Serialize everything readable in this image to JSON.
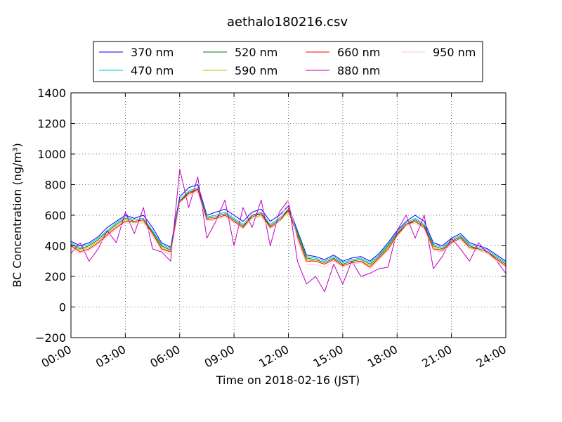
{
  "chart_data": {
    "type": "line",
    "title": "aethalo180216.csv",
    "xlabel": "Time on 2018-02-16 (JST)",
    "ylabel": "BC Concentration (ng/m³)",
    "ylim": [
      -200,
      1400
    ],
    "xlim": [
      "00:00",
      "24:00"
    ],
    "grid": true,
    "legend_position": "top, above plot",
    "yticks": [
      "−200",
      "0",
      "200",
      "400",
      "600",
      "800",
      "1000",
      "1200",
      "1400"
    ],
    "xticks": [
      "00:00",
      "03:00",
      "06:00",
      "09:00",
      "12:00",
      "15:00",
      "18:00",
      "21:00",
      "24:00"
    ],
    "x_hours": [
      0,
      0.5,
      1,
      1.5,
      2,
      2.5,
      3,
      3.5,
      4,
      4.5,
      5,
      5.5,
      6,
      6.5,
      7,
      7.5,
      8,
      8.5,
      9,
      9.5,
      10,
      10.5,
      11,
      11.5,
      12,
      12.5,
      13,
      13.5,
      14,
      14.5,
      15,
      15.5,
      16,
      16.5,
      17,
      17.5,
      18,
      18.5,
      19,
      19.5,
      20,
      20.5,
      21,
      21.5,
      22,
      22.5,
      23,
      23.5,
      24
    ],
    "series": [
      {
        "name": "370 nm",
        "color": "#0000ff",
        "values": [
          430,
          400,
          420,
          460,
          520,
          560,
          600,
          580,
          600,
          520,
          420,
          390,
          720,
          780,
          800,
          600,
          620,
          640,
          600,
          560,
          620,
          640,
          560,
          600,
          660,
          500,
          340,
          330,
          310,
          340,
          300,
          320,
          330,
          300,
          350,
          420,
          500,
          560,
          600,
          560,
          420,
          400,
          450,
          480,
          420,
          400,
          380,
          340,
          300
        ]
      },
      {
        "name": "470 nm",
        "color": "#00bfbf",
        "values": [
          420,
          390,
          410,
          450,
          500,
          550,
          590,
          570,
          580,
          500,
          410,
          380,
          700,
          760,
          780,
          590,
          600,
          620,
          580,
          540,
          600,
          620,
          540,
          580,
          640,
          490,
          330,
          320,
          300,
          330,
          290,
          310,
          320,
          290,
          340,
          410,
          490,
          550,
          580,
          540,
          410,
          390,
          440,
          470,
          410,
          390,
          370,
          330,
          290
        ]
      },
      {
        "name": "520 nm",
        "color": "#008000",
        "values": [
          410,
          380,
          400,
          440,
          490,
          540,
          580,
          560,
          570,
          490,
          400,
          370,
          690,
          750,
          770,
          580,
          590,
          610,
          570,
          530,
          590,
          610,
          530,
          570,
          630,
          480,
          320,
          310,
          290,
          320,
          280,
          300,
          310,
          280,
          330,
          400,
          480,
          540,
          570,
          530,
          400,
          380,
          430,
          460,
          400,
          380,
          360,
          320,
          280
        ]
      },
      {
        "name": "590 nm",
        "color": "#bfbf00",
        "values": [
          400,
          370,
          390,
          430,
          480,
          530,
          570,
          550,
          560,
          480,
          390,
          360,
          680,
          740,
          760,
          570,
          580,
          600,
          560,
          520,
          580,
          600,
          520,
          560,
          620,
          470,
          310,
          300,
          280,
          310,
          270,
          290,
          300,
          270,
          320,
          390,
          470,
          530,
          560,
          520,
          390,
          370,
          420,
          450,
          390,
          370,
          350,
          310,
          270
        ]
      },
      {
        "name": "660 nm",
        "color": "#ff0000",
        "values": [
          400,
          360,
          380,
          420,
          470,
          520,
          560,
          560,
          570,
          480,
          380,
          360,
          690,
          740,
          770,
          570,
          580,
          600,
          560,
          520,
          600,
          610,
          520,
          560,
          640,
          460,
          300,
          300,
          280,
          310,
          270,
          290,
          300,
          260,
          320,
          380,
          470,
          540,
          560,
          520,
          380,
          370,
          420,
          450,
          390,
          380,
          360,
          310,
          270
        ]
      },
      {
        "name": "880 nm",
        "color": "#bf00bf",
        "values": [
          350,
          420,
          300,
          380,
          500,
          420,
          620,
          480,
          650,
          380,
          360,
          300,
          900,
          650,
          850,
          450,
          560,
          700,
          400,
          650,
          520,
          700,
          400,
          620,
          700,
          300,
          150,
          200,
          100,
          280,
          150,
          300,
          200,
          220,
          250,
          260,
          500,
          600,
          450,
          600,
          250,
          330,
          450,
          380,
          300,
          420,
          350,
          300,
          220
        ]
      },
      {
        "name": "950 nm",
        "color": "#ffc0cb",
        "values": [
          380,
          350,
          370,
          410,
          460,
          510,
          550,
          540,
          550,
          460,
          370,
          340,
          680,
          730,
          750,
          560,
          570,
          590,
          550,
          510,
          580,
          590,
          510,
          560,
          700,
          440,
          280,
          280,
          260,
          300,
          260,
          280,
          290,
          250,
          310,
          370,
          460,
          530,
          550,
          510,
          370,
          360,
          410,
          440,
          380,
          370,
          350,
          300,
          260
        ]
      }
    ]
  }
}
